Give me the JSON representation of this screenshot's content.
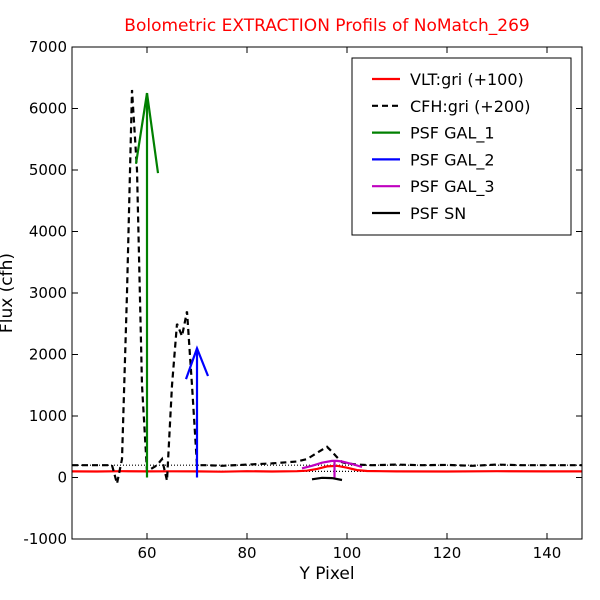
{
  "chart_data": {
    "type": "line",
    "title": "Bolometric EXTRACTION Profils of NoMatch_269",
    "title_color": "#ff0000",
    "xlabel": "Y Pixel",
    "ylabel": "Flux (cfh)",
    "xlim": [
      45,
      147
    ],
    "ylim": [
      -1000,
      7000
    ],
    "xticks": [
      60,
      80,
      100,
      120,
      140
    ],
    "yticks": [
      -1000,
      0,
      1000,
      2000,
      3000,
      4000,
      5000,
      6000,
      7000
    ],
    "grid": false,
    "legend_position": "top-right",
    "reference_lines": [
      {
        "y": 100,
        "color": "#000000",
        "dash": "1,2"
      },
      {
        "y": 200,
        "color": "#000000",
        "dash": "1,2"
      }
    ],
    "series": [
      {
        "name": "VLT:gri (+100)",
        "color": "#ff0000",
        "dash": "",
        "x": [
          45,
          50,
          55,
          60,
          65,
          70,
          75,
          80,
          85,
          90,
          92,
          94,
          96,
          98,
          100,
          102,
          104,
          110,
          120,
          130,
          140,
          147
        ],
        "y": [
          100,
          98,
          102,
          99,
          101,
          100,
          95,
          102,
          98,
          103,
          110,
          140,
          180,
          190,
          160,
          120,
          105,
          100,
          98,
          103,
          100,
          100
        ]
      },
      {
        "name": "CFH:gri (+200)",
        "color": "#000000",
        "dash": "6,4",
        "x": [
          45,
          50,
          53,
          54,
          55,
          56,
          57,
          58,
          59,
          60,
          61,
          62,
          63,
          64,
          65,
          66,
          67,
          68,
          69,
          70,
          72,
          75,
          80,
          85,
          90,
          92,
          94,
          95,
          96,
          97,
          98,
          99,
          100,
          102,
          105,
          110,
          115,
          120,
          125,
          130,
          135,
          140,
          147
        ],
        "y": [
          200,
          200,
          200,
          -100,
          300,
          3000,
          6300,
          5000,
          1500,
          100,
          150,
          200,
          300,
          -50,
          1500,
          2500,
          2300,
          2700,
          1500,
          200,
          200,
          190,
          210,
          230,
          260,
          300,
          400,
          450,
          500,
          420,
          330,
          250,
          230,
          210,
          200,
          210,
          200,
          205,
          190,
          210,
          200,
          200,
          200
        ]
      },
      {
        "name": "PSF GAL_1",
        "color": "#008000",
        "dash": "",
        "arrow": {
          "x": 60,
          "y0": 0,
          "y1": 6250
        },
        "head": [
          [
            57.8,
            5100
          ],
          [
            60,
            6250
          ],
          [
            62.2,
            4950
          ]
        ]
      },
      {
        "name": "PSF GAL_2",
        "color": "#0000ff",
        "dash": "",
        "arrow": {
          "x": 70,
          "y0": 0,
          "y1": 2100
        },
        "head": [
          [
            67.8,
            1600
          ],
          [
            70,
            2100
          ],
          [
            72.2,
            1650
          ]
        ]
      },
      {
        "name": "PSF GAL_3",
        "color": "#bf00bf",
        "dash": "",
        "x": [
          91,
          93,
          95,
          97,
          98,
          99,
          101,
          103
        ],
        "y": [
          150,
          190,
          240,
          270,
          270,
          260,
          220,
          170
        ],
        "arrow": {
          "x": 97.5,
          "y0": 0,
          "y1": 280
        }
      },
      {
        "name": "PSF SN",
        "color": "#000000",
        "dash": "",
        "x": [
          93,
          95,
          97,
          99
        ],
        "y": [
          -30,
          -5,
          -10,
          -40
        ]
      }
    ]
  }
}
